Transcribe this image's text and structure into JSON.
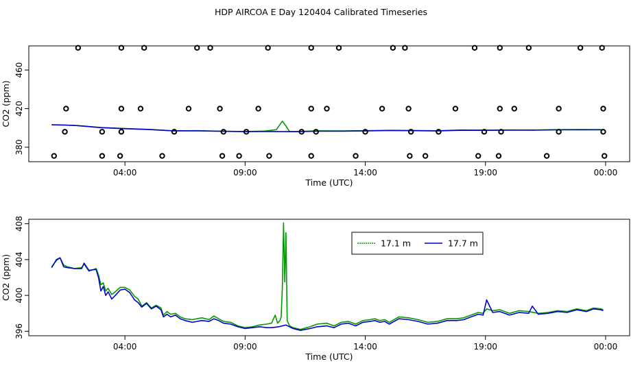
{
  "figure": {
    "title": "HDP AIRCOA E  Day 120404  Calibrated Timeseries"
  },
  "chart_data": [
    {
      "type": "scatter",
      "panel": "top",
      "xlabel": "Time (UTC)",
      "ylabel": "CO2 (ppm)",
      "x_unit": "hours UTC",
      "xlim": [
        0.0,
        25.0
      ],
      "ylim": [
        365,
        485
      ],
      "x_ticks": [
        {
          "value": 4,
          "label": "04:00"
        },
        {
          "value": 9,
          "label": "09:00"
        },
        {
          "value": 14,
          "label": "14:00"
        },
        {
          "value": 19,
          "label": "19:00"
        },
        {
          "value": 24,
          "label": "00:00"
        }
      ],
      "y_ticks": [
        {
          "value": 380,
          "label": "380"
        },
        {
          "value": 420,
          "label": "420"
        },
        {
          "value": 460,
          "label": "460"
        }
      ],
      "grid": false,
      "series": [
        {
          "color": "#009900",
          "x": [
            0.95,
            1.5,
            2.0,
            3.0,
            3.9,
            5.0,
            6.0,
            7.0,
            8.0,
            9.0,
            9.8,
            10.3,
            10.55,
            10.7,
            10.85,
            11.2,
            12.0,
            13.0,
            14.0,
            15.0,
            16.0,
            17.0,
            18.0,
            19.0,
            20.0,
            21.0,
            22.0,
            23.0,
            23.9
          ],
          "y": [
            403.3,
            403.0,
            402.5,
            400.5,
            399.5,
            398.5,
            397.0,
            397.2,
            396.6,
            396.3,
            396.7,
            398.2,
            407.0,
            402.0,
            396.2,
            396.3,
            397.0,
            396.9,
            397.2,
            397.5,
            397.4,
            397.1,
            397.9,
            397.6,
            397.9,
            397.8,
            398.2,
            398.3,
            398.2
          ]
        },
        {
          "color": "#0000cc",
          "x": [
            0.95,
            1.5,
            2.0,
            3.0,
            3.9,
            5.0,
            6.0,
            7.0,
            8.0,
            9.0,
            10.0,
            11.0,
            12.0,
            13.0,
            14.0,
            15.0,
            16.0,
            17.0,
            18.0,
            19.0,
            20.0,
            21.0,
            22.0,
            23.0,
            23.9
          ],
          "y": [
            403.2,
            403.0,
            402.4,
            400.3,
            399.3,
            398.3,
            397.0,
            397.0,
            396.5,
            396.2,
            396.3,
            396.1,
            396.6,
            396.7,
            396.9,
            397.3,
            397.2,
            396.9,
            397.6,
            397.5,
            397.7,
            397.7,
            398.0,
            398.1,
            398.0
          ]
        },
        {
          "color": "#000000",
          "marker": "open-circle",
          "x": [
            2.05,
            3.85,
            4.8,
            7.0,
            7.55,
            9.95,
            11.75,
            12.9,
            15.15,
            15.65,
            18.55,
            19.6,
            20.8,
            22.95,
            23.85,
            1.55,
            3.85,
            4.65,
            6.65,
            7.95,
            9.55,
            11.75,
            12.4,
            14.7,
            15.8,
            17.75,
            19.6,
            20.2,
            22.05,
            23.9,
            1.05,
            3.05,
            3.8,
            5.55,
            8.05,
            8.75,
            10.0,
            11.75,
            13.6,
            15.85,
            16.5,
            18.7,
            19.55,
            21.55,
            23.95,
            1.5,
            3.05,
            3.85,
            6.05,
            8.1,
            9.05,
            11.35,
            11.95,
            14.0,
            15.9,
            17.05,
            18.95,
            19.65,
            22.05,
            23.9
          ],
          "y": [
            483,
            483,
            483,
            483,
            483,
            483,
            483,
            483,
            483,
            483,
            483,
            483,
            483,
            483,
            483,
            420,
            420,
            420,
            420,
            420,
            420,
            420,
            420,
            420,
            420,
            420,
            420,
            420,
            420,
            420,
            371,
            371,
            371,
            371,
            371,
            371,
            371,
            371,
            371,
            371,
            371,
            371,
            371,
            371,
            371,
            396,
            396,
            396,
            396,
            396,
            396,
            396,
            396,
            396,
            396,
            396,
            396,
            396,
            396,
            396
          ]
        }
      ]
    },
    {
      "type": "line",
      "panel": "bottom",
      "xlabel": "Time (UTC)",
      "ylabel": "CO2 (ppm)",
      "x_unit": "hours UTC",
      "xlim": [
        0.0,
        25.0
      ],
      "ylim": [
        395.5,
        408.5
      ],
      "x_ticks": [
        {
          "value": 4,
          "label": "04:00"
        },
        {
          "value": 9,
          "label": "09:00"
        },
        {
          "value": 14,
          "label": "14:00"
        },
        {
          "value": 19,
          "label": "19:00"
        },
        {
          "value": 24,
          "label": "00:00"
        }
      ],
      "y_ticks": [
        {
          "value": 396,
          "label": "396"
        },
        {
          "value": 400,
          "label": "400"
        },
        {
          "value": 404,
          "label": "404"
        },
        {
          "value": 408,
          "label": "408"
        }
      ],
      "grid": false,
      "legend_position": "top-right",
      "series": [
        {
          "name": "17.1 m",
          "color": "#009900",
          "x": [
            0.95,
            1.15,
            1.3,
            1.45,
            1.6,
            1.9,
            2.2,
            2.3,
            2.5,
            2.8,
            2.9,
            3.0,
            3.1,
            3.2,
            3.3,
            3.45,
            3.6,
            3.8,
            4.0,
            4.2,
            4.4,
            4.55,
            4.7,
            4.9,
            5.1,
            5.3,
            5.5,
            5.6,
            5.75,
            5.9,
            6.1,
            6.3,
            6.5,
            6.8,
            7.0,
            7.2,
            7.5,
            7.7,
            7.9,
            8.1,
            8.4,
            8.7,
            9.0,
            9.3,
            9.6,
            9.9,
            10.1,
            10.25,
            10.35,
            10.45,
            10.5,
            10.55,
            10.6,
            10.65,
            10.7,
            10.75,
            10.85,
            11.0,
            11.3,
            11.7,
            12.0,
            12.4,
            12.7,
            13.0,
            13.3,
            13.6,
            13.9,
            14.2,
            14.4,
            14.6,
            14.8,
            15.0,
            15.4,
            15.8,
            16.2,
            16.6,
            17.0,
            17.4,
            17.8,
            18.1,
            18.4,
            18.7,
            18.9,
            19.05,
            19.3,
            19.6,
            20.0,
            20.4,
            20.8,
            21.2,
            21.6,
            22.0,
            22.4,
            22.8,
            23.2,
            23.5,
            23.8,
            23.9
          ],
          "y": [
            403.2,
            403.9,
            404.2,
            403.4,
            403.2,
            403.0,
            403.1,
            403.5,
            402.7,
            403.0,
            402.3,
            401.2,
            401.4,
            400.5,
            400.8,
            400.1,
            400.4,
            400.9,
            400.9,
            400.6,
            399.9,
            399.6,
            398.8,
            399.2,
            398.6,
            398.9,
            398.6,
            397.8,
            398.2,
            397.9,
            398.0,
            397.6,
            397.4,
            397.3,
            397.4,
            397.5,
            397.3,
            397.7,
            397.4,
            397.1,
            397.0,
            396.6,
            396.4,
            396.5,
            396.7,
            396.8,
            396.9,
            397.8,
            396.9,
            397.2,
            397.6,
            401.0,
            408.1,
            401.5,
            407.0,
            397.2,
            396.6,
            396.4,
            396.2,
            396.5,
            396.8,
            396.9,
            396.6,
            397.0,
            397.1,
            396.8,
            397.2,
            397.3,
            397.4,
            397.2,
            397.3,
            397.0,
            397.6,
            397.5,
            397.3,
            397.0,
            397.1,
            397.4,
            397.4,
            397.5,
            397.8,
            398.1,
            398.0,
            398.5,
            398.3,
            398.4,
            398.0,
            398.3,
            398.2,
            398.0,
            398.1,
            398.3,
            398.2,
            398.5,
            398.3,
            398.6,
            398.5,
            398.4
          ]
        },
        {
          "name": "17.7 m",
          "color": "#0000cc",
          "x": [
            0.95,
            1.15,
            1.3,
            1.45,
            1.6,
            1.9,
            2.2,
            2.3,
            2.5,
            2.8,
            2.9,
            3.0,
            3.1,
            3.2,
            3.3,
            3.45,
            3.6,
            3.8,
            4.0,
            4.2,
            4.4,
            4.55,
            4.7,
            4.9,
            5.1,
            5.3,
            5.5,
            5.6,
            5.75,
            5.9,
            6.1,
            6.3,
            6.5,
            6.8,
            7.0,
            7.2,
            7.5,
            7.7,
            7.9,
            8.1,
            8.4,
            8.7,
            9.0,
            9.3,
            9.6,
            9.9,
            10.1,
            10.4,
            10.7,
            11.0,
            11.3,
            11.7,
            12.0,
            12.4,
            12.7,
            13.0,
            13.3,
            13.6,
            13.9,
            14.2,
            14.4,
            14.6,
            14.8,
            15.0,
            15.4,
            15.8,
            16.2,
            16.6,
            17.0,
            17.4,
            17.8,
            18.1,
            18.4,
            18.7,
            18.9,
            19.05,
            19.3,
            19.6,
            20.0,
            20.4,
            20.8,
            20.95,
            21.2,
            21.6,
            22.0,
            22.4,
            22.8,
            23.2,
            23.5,
            23.8,
            23.9
          ],
          "y": [
            403.1,
            404.0,
            404.2,
            403.2,
            403.1,
            403.0,
            403.0,
            403.6,
            402.8,
            402.9,
            402.0,
            400.5,
            401.0,
            400.0,
            400.4,
            399.6,
            400.0,
            400.6,
            400.7,
            400.3,
            399.5,
            399.2,
            398.7,
            399.1,
            398.5,
            398.8,
            398.4,
            397.6,
            397.9,
            397.6,
            397.8,
            397.4,
            397.2,
            397.0,
            397.1,
            397.2,
            397.1,
            397.4,
            397.2,
            396.9,
            396.8,
            396.5,
            396.3,
            396.4,
            396.5,
            396.4,
            396.4,
            396.5,
            396.7,
            396.3,
            396.1,
            396.3,
            396.5,
            396.6,
            396.4,
            396.8,
            396.9,
            396.6,
            397.0,
            397.1,
            397.2,
            397.0,
            397.1,
            396.8,
            397.4,
            397.3,
            397.1,
            396.8,
            396.9,
            397.2,
            397.2,
            397.3,
            397.6,
            397.9,
            397.8,
            399.5,
            398.1,
            398.2,
            397.8,
            398.1,
            398.0,
            398.8,
            397.9,
            398.0,
            398.2,
            398.1,
            398.4,
            398.2,
            398.5,
            398.4,
            398.3
          ]
        }
      ]
    }
  ]
}
